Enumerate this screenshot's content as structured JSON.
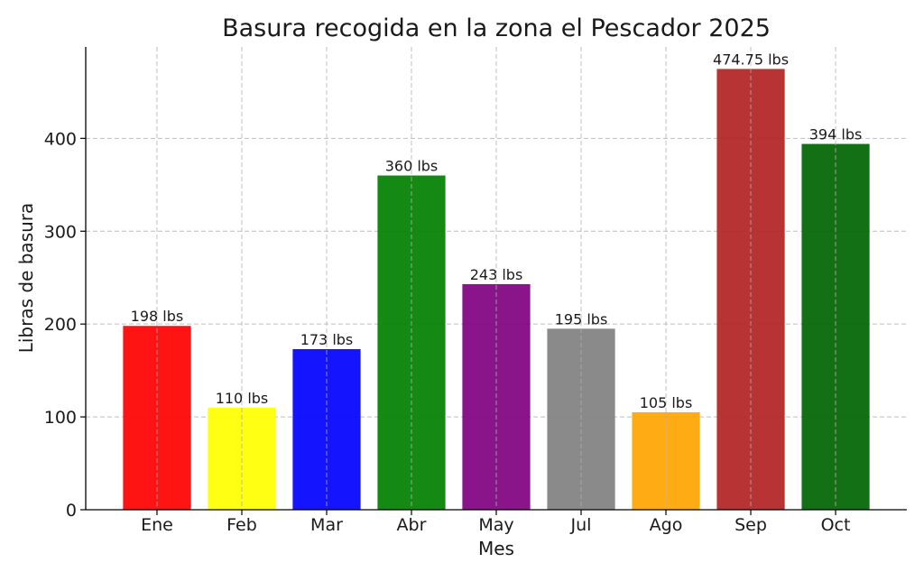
{
  "chart_data": {
    "type": "bar",
    "title": "Basura recogida en la zona el Pescador 2025",
    "xlabel": "Mes",
    "ylabel": "Libras de basura",
    "categories": [
      "Ene",
      "Feb",
      "Mar",
      "Abr",
      "May",
      "Jul",
      "Ago",
      "Sep",
      "Oct"
    ],
    "values": [
      198,
      110,
      173,
      360,
      243,
      195,
      105,
      474.75,
      394
    ],
    "data_labels": [
      "198 lbs",
      "110 lbs",
      "173 lbs",
      "360 lbs",
      "243 lbs",
      "195 lbs",
      "105 lbs",
      "474.75 lbs",
      "394 lbs"
    ],
    "colors": [
      "#ff0000",
      "#ffff00",
      "#0000ff",
      "#008000",
      "#800080",
      "#808080",
      "#ffa500",
      "#b22222",
      "#006400"
    ],
    "yticks": [
      0,
      100,
      200,
      300,
      400
    ],
    "ylim": [
      0,
      498.5
    ],
    "grid": true
  }
}
